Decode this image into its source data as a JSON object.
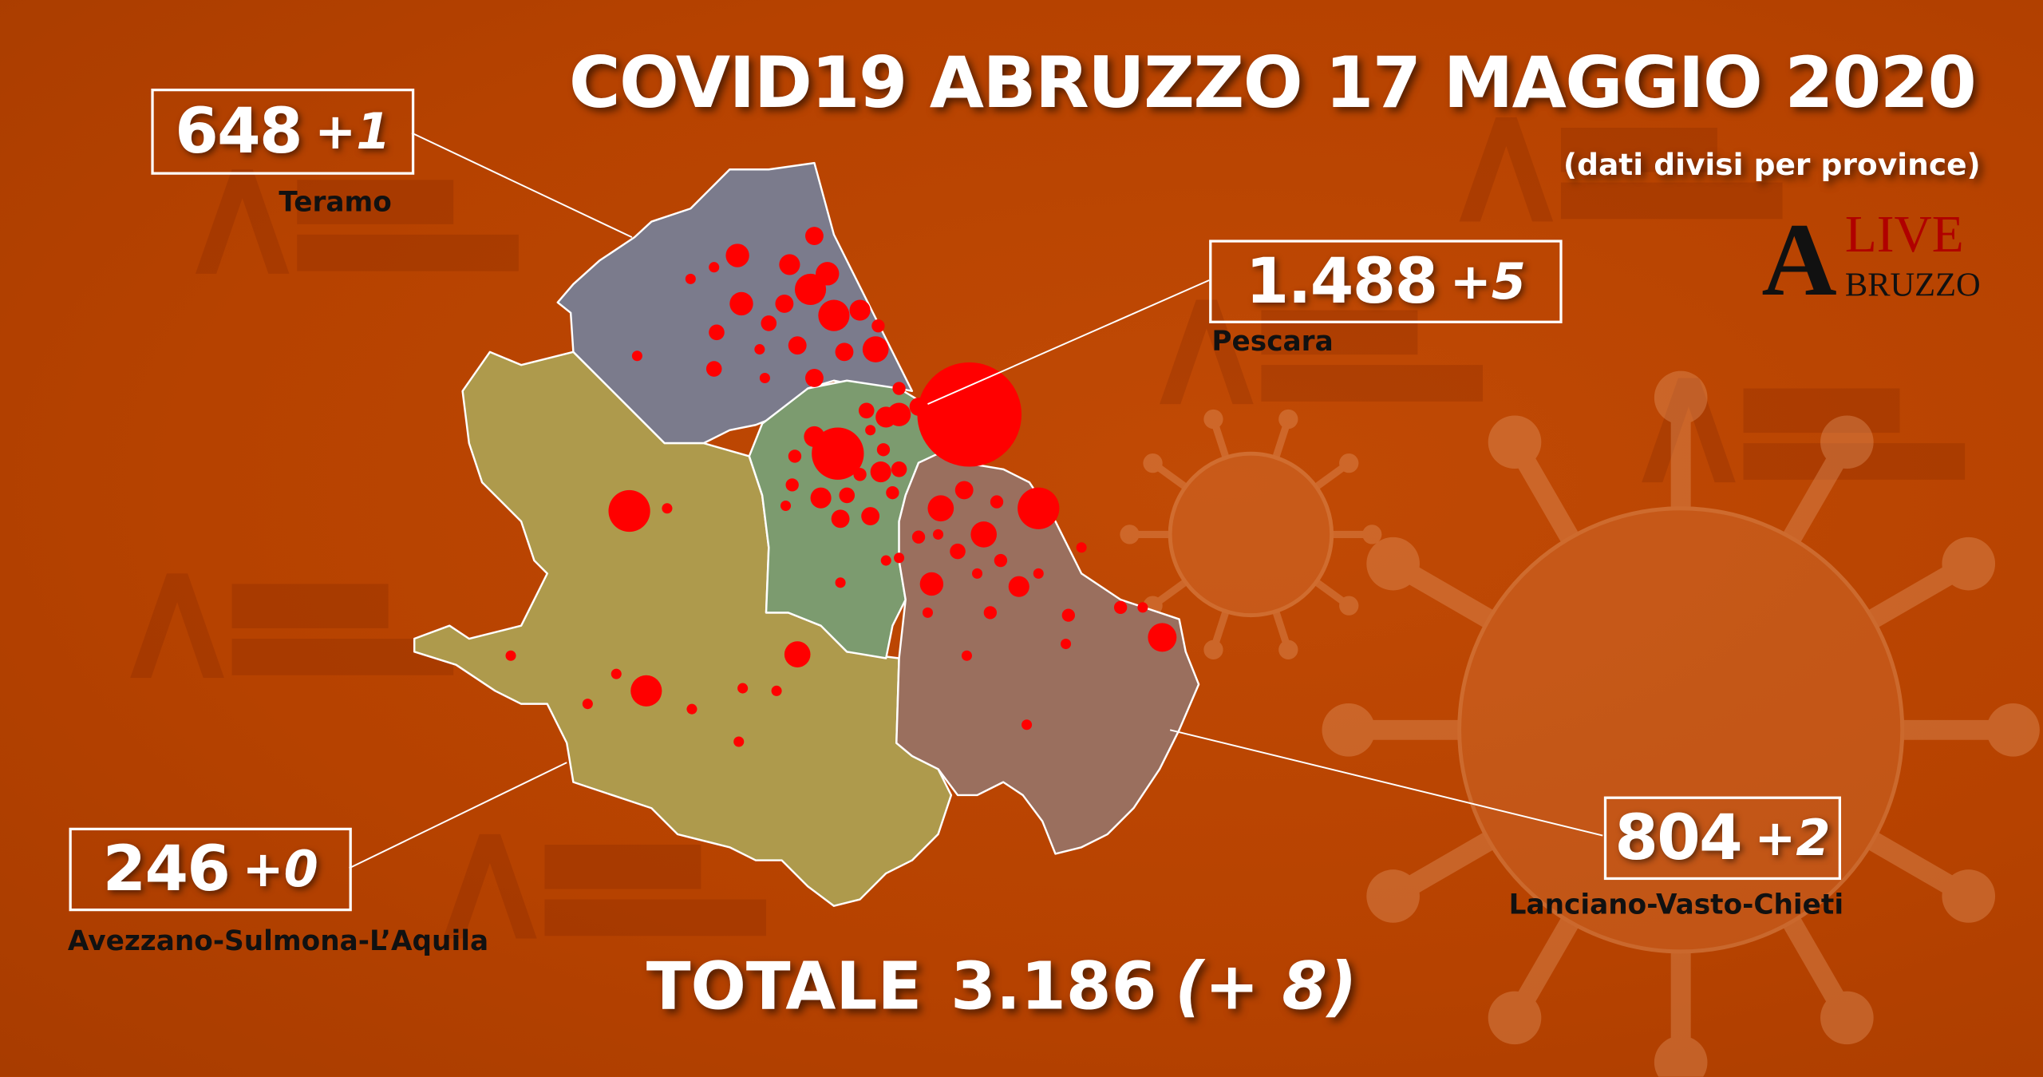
{
  "title": "COVID19 ABRUZZO 17 MAGGIO 2020",
  "subtitle": "(dati divisi per province)",
  "logo": {
    "text_a": "A",
    "text_live": "LIVE",
    "text_bruzzo": "BRUZZO"
  },
  "provinces": [
    {
      "name": "Teramo",
      "total": "648",
      "delta": "+1",
      "color": "#7b7b8c"
    },
    {
      "name": "Pescara",
      "total": "1.488",
      "delta": "+5",
      "color": "#7c9b6f"
    },
    {
      "name": "Avezzano-Sulmona-L’Aquila",
      "total": "246",
      "delta": "+0",
      "color": "#ae9a4c"
    },
    {
      "name": "Lanciano-Vasto-Chieti",
      "total": "804",
      "delta": "+2",
      "color": "#9a6f5e"
    }
  ],
  "total": {
    "label": "TOTALE",
    "value": "3.186",
    "delta": "(+ 8)"
  },
  "colors": {
    "background": "#b84300",
    "dots": "#ff0000"
  }
}
